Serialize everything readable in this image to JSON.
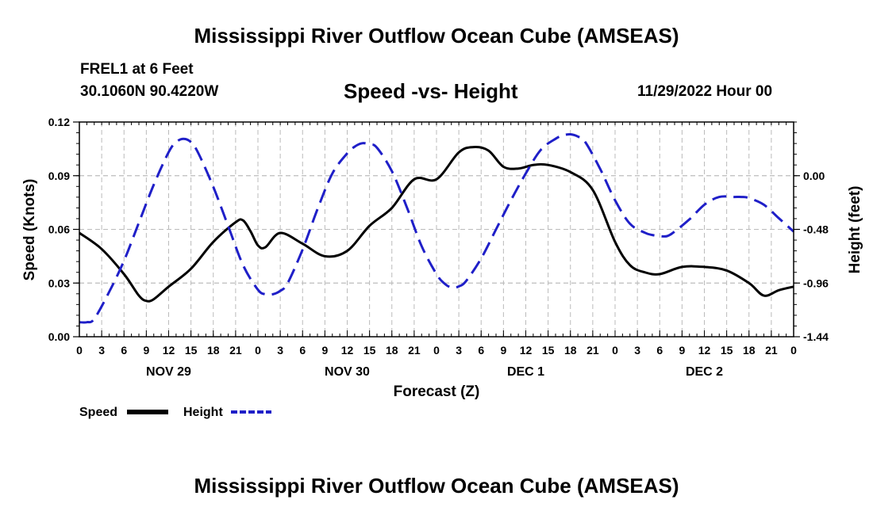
{
  "header": {
    "title": "Mississippi River Outflow Ocean Cube (AMSEAS)",
    "station": "FREL1 at 6 Feet",
    "coords": "30.1060N  90.4220W",
    "subtitle": "Speed -vs- Height",
    "date": "11/29/2022 Hour 00"
  },
  "footer": {
    "title": "Mississippi River Outflow Ocean Cube (AMSEAS)"
  },
  "colors": {
    "speed": "#000000",
    "height": "#1f1fc8",
    "grid": "#bbbbbb"
  },
  "chart_data": {
    "type": "line",
    "xlabel": "Forecast (Z)",
    "ylabel": "Speed (Knots)",
    "y2label": "Height (feet)",
    "xlim": [
      0,
      96
    ],
    "ylim": [
      0,
      0.12
    ],
    "y2lim": [
      -1.44,
      0.48
    ],
    "x_ticks": [
      0,
      3,
      6,
      9,
      12,
      15,
      18,
      21,
      24,
      27,
      30,
      33,
      36,
      39,
      42,
      45,
      48,
      51,
      54,
      57,
      60,
      63,
      66,
      69,
      72,
      75,
      78,
      81,
      84,
      87,
      90,
      93,
      96
    ],
    "x_tick_labels": [
      "0",
      "3",
      "6",
      "9",
      "12",
      "15",
      "18",
      "21",
      "0",
      "3",
      "6",
      "9",
      "12",
      "15",
      "18",
      "21",
      "0",
      "3",
      "6",
      "9",
      "12",
      "15",
      "18",
      "21",
      "0",
      "3",
      "6",
      "9",
      "12",
      "15",
      "18",
      "21",
      "0"
    ],
    "y_ticks": [
      0,
      0.03,
      0.06,
      0.09,
      0.12
    ],
    "y_tick_labels": [
      "0.00",
      "0.03",
      "0.06",
      "0.09",
      "0.12"
    ],
    "y2_ticks": [
      -1.44,
      -0.96,
      -0.48,
      0.0
    ],
    "y2_tick_labels": [
      "-1.44",
      "-0.96",
      "-0.48",
      "0.00"
    ],
    "day_labels": [
      {
        "x": 12,
        "label": "NOV 29"
      },
      {
        "x": 36,
        "label": "NOV 30"
      },
      {
        "x": 60,
        "label": "DEC 1"
      },
      {
        "x": 84,
        "label": "DEC 2"
      }
    ],
    "grid": true,
    "legend": {
      "position": "bottom-left",
      "entries": [
        {
          "name": "Speed",
          "style": "solid"
        },
        {
          "name": "Height",
          "style": "dashed"
        }
      ]
    },
    "series": [
      {
        "name": "Speed",
        "axis": "left",
        "x": [
          0,
          3,
          6,
          8,
          9,
          10,
          12,
          15,
          18,
          21,
          22,
          23,
          24,
          25,
          27,
          30,
          33,
          36,
          39,
          42,
          45,
          48,
          51,
          53,
          55,
          57,
          59,
          61,
          63,
          66,
          69,
          72,
          74,
          76,
          78,
          81,
          84,
          87,
          90,
          92,
          94,
          96
        ],
        "values": [
          0.058,
          0.049,
          0.035,
          0.023,
          0.02,
          0.021,
          0.028,
          0.038,
          0.053,
          0.064,
          0.065,
          0.059,
          0.051,
          0.05,
          0.058,
          0.052,
          0.045,
          0.048,
          0.062,
          0.072,
          0.088,
          0.088,
          0.103,
          0.106,
          0.104,
          0.095,
          0.094,
          0.096,
          0.096,
          0.092,
          0.082,
          0.053,
          0.04,
          0.036,
          0.035,
          0.039,
          0.039,
          0.037,
          0.03,
          0.023,
          0.026,
          0.028
        ]
      },
      {
        "name": "Height",
        "axis": "right",
        "x": [
          0,
          1,
          2,
          4,
          6,
          8,
          10,
          12,
          13,
          14,
          15,
          16,
          18,
          20,
          22,
          24,
          25,
          26,
          27,
          28,
          30,
          32,
          34,
          36,
          37,
          38,
          39,
          40,
          42,
          44,
          46,
          48,
          49,
          50,
          51,
          52,
          54,
          56,
          58,
          60,
          62,
          64,
          65,
          66,
          67,
          68,
          70,
          72,
          74,
          76,
          77,
          78,
          79,
          80,
          82,
          84,
          86,
          88,
          89,
          90,
          92,
          94,
          96
        ],
        "values": [
          -1.31,
          -1.31,
          -1.28,
          -1.04,
          -0.76,
          -0.42,
          -0.08,
          0.21,
          0.3,
          0.33,
          0.3,
          0.2,
          -0.1,
          -0.45,
          -0.8,
          -1.02,
          -1.06,
          -1.06,
          -1.03,
          -0.96,
          -0.66,
          -0.3,
          0.02,
          0.2,
          0.26,
          0.29,
          0.28,
          0.25,
          0.04,
          -0.28,
          -0.63,
          -0.88,
          -0.96,
          -1.0,
          -0.99,
          -0.94,
          -0.74,
          -0.48,
          -0.22,
          0.02,
          0.23,
          0.33,
          0.36,
          0.37,
          0.35,
          0.3,
          0.06,
          -0.22,
          -0.43,
          -0.51,
          -0.53,
          -0.54,
          -0.54,
          -0.5,
          -0.39,
          -0.26,
          -0.19,
          -0.19,
          -0.19,
          -0.2,
          -0.26,
          -0.38,
          -0.5
        ]
      }
    ]
  }
}
